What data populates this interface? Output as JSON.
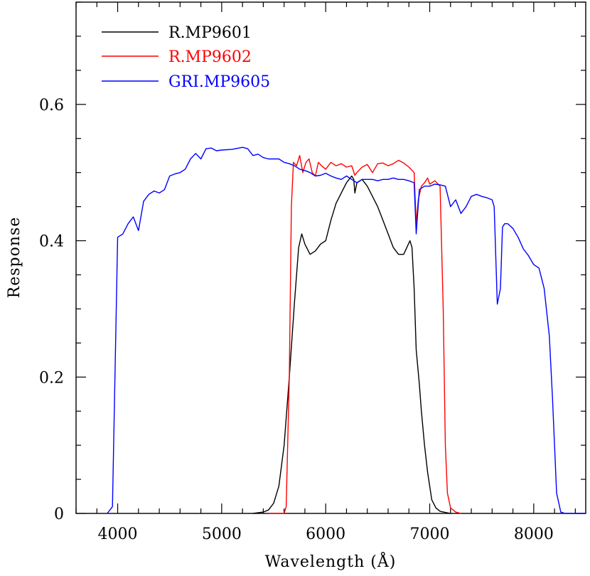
{
  "chart_data": {
    "type": "line",
    "title": "",
    "xlabel": "Wavelength (Å)",
    "ylabel": "Response",
    "xlim": [
      3600,
      8500
    ],
    "ylim": [
      0,
      0.75
    ],
    "x_ticks": [
      4000,
      5000,
      6000,
      7000,
      8000
    ],
    "x_tick_labels": [
      "4000",
      "5000",
      "6000",
      "7000",
      "8000"
    ],
    "y_ticks": [
      0,
      0.2,
      0.4,
      0.6
    ],
    "y_tick_labels": [
      "0",
      "0.2",
      "0.4",
      "0.6"
    ],
    "grid": false,
    "legend_position": "top-left",
    "series": [
      {
        "name": "R.MP9601",
        "color": "#000000",
        "points": [
          [
            5300,
            0
          ],
          [
            5400,
            0.002
          ],
          [
            5450,
            0.005
          ],
          [
            5500,
            0.015
          ],
          [
            5550,
            0.04
          ],
          [
            5600,
            0.1
          ],
          [
            5650,
            0.2
          ],
          [
            5700,
            0.31
          ],
          [
            5740,
            0.39
          ],
          [
            5770,
            0.41
          ],
          [
            5800,
            0.395
          ],
          [
            5850,
            0.38
          ],
          [
            5900,
            0.385
          ],
          [
            5950,
            0.395
          ],
          [
            6000,
            0.4
          ],
          [
            6050,
            0.43
          ],
          [
            6100,
            0.455
          ],
          [
            6150,
            0.47
          ],
          [
            6200,
            0.485
          ],
          [
            6250,
            0.495
          ],
          [
            6270,
            0.49
          ],
          [
            6280,
            0.47
          ],
          [
            6300,
            0.485
          ],
          [
            6350,
            0.49
          ],
          [
            6400,
            0.48
          ],
          [
            6450,
            0.465
          ],
          [
            6500,
            0.45
          ],
          [
            6550,
            0.43
          ],
          [
            6600,
            0.41
          ],
          [
            6650,
            0.39
          ],
          [
            6700,
            0.38
          ],
          [
            6750,
            0.38
          ],
          [
            6780,
            0.39
          ],
          [
            6810,
            0.4
          ],
          [
            6830,
            0.39
          ],
          [
            6850,
            0.33
          ],
          [
            6870,
            0.24
          ],
          [
            6900,
            0.19
          ],
          [
            6920,
            0.15
          ],
          [
            6950,
            0.1
          ],
          [
            6980,
            0.06
          ],
          [
            7020,
            0.02
          ],
          [
            7060,
            0.008
          ],
          [
            7100,
            0.003
          ],
          [
            7200,
            0
          ]
        ]
      },
      {
        "name": "R.MP9602",
        "color": "#ff0000",
        "points": [
          [
            5450,
            0
          ],
          [
            5600,
            0
          ],
          [
            5620,
            0.01
          ],
          [
            5650,
            0.2
          ],
          [
            5670,
            0.45
          ],
          [
            5690,
            0.515
          ],
          [
            5720,
            0.51
          ],
          [
            5750,
            0.525
          ],
          [
            5780,
            0.5
          ],
          [
            5810,
            0.515
          ],
          [
            5840,
            0.52
          ],
          [
            5870,
            0.5
          ],
          [
            5900,
            0.495
          ],
          [
            5930,
            0.515
          ],
          [
            5960,
            0.51
          ],
          [
            6000,
            0.505
          ],
          [
            6050,
            0.515
          ],
          [
            6100,
            0.51
          ],
          [
            6150,
            0.513
          ],
          [
            6200,
            0.508
          ],
          [
            6250,
            0.51
          ],
          [
            6280,
            0.496
          ],
          [
            6300,
            0.5
          ],
          [
            6350,
            0.508
          ],
          [
            6400,
            0.512
          ],
          [
            6450,
            0.5
          ],
          [
            6500,
            0.513
          ],
          [
            6550,
            0.514
          ],
          [
            6600,
            0.51
          ],
          [
            6650,
            0.513
          ],
          [
            6700,
            0.518
          ],
          [
            6750,
            0.514
          ],
          [
            6800,
            0.508
          ],
          [
            6850,
            0.5
          ],
          [
            6870,
            0.425
          ],
          [
            6890,
            0.46
          ],
          [
            6920,
            0.48
          ],
          [
            6950,
            0.485
          ],
          [
            6980,
            0.492
          ],
          [
            7000,
            0.483
          ],
          [
            7050,
            0.488
          ],
          [
            7100,
            0.48
          ],
          [
            7130,
            0.3
          ],
          [
            7150,
            0.1
          ],
          [
            7170,
            0.03
          ],
          [
            7200,
            0.008
          ],
          [
            7250,
            0.002
          ],
          [
            7300,
            0
          ]
        ]
      },
      {
        "name": "GRI.MP9605",
        "color": "#0000ff",
        "points": [
          [
            3900,
            0
          ],
          [
            3950,
            0.01
          ],
          [
            4000,
            0.405
          ],
          [
            4050,
            0.41
          ],
          [
            4100,
            0.425
          ],
          [
            4150,
            0.435
          ],
          [
            4200,
            0.415
          ],
          [
            4250,
            0.458
          ],
          [
            4300,
            0.468
          ],
          [
            4350,
            0.473
          ],
          [
            4400,
            0.47
          ],
          [
            4450,
            0.475
          ],
          [
            4500,
            0.495
          ],
          [
            4550,
            0.498
          ],
          [
            4600,
            0.5
          ],
          [
            4650,
            0.505
          ],
          [
            4700,
            0.52
          ],
          [
            4750,
            0.528
          ],
          [
            4800,
            0.52
          ],
          [
            4850,
            0.535
          ],
          [
            4900,
            0.536
          ],
          [
            4950,
            0.532
          ],
          [
            5000,
            0.533
          ],
          [
            5100,
            0.534
          ],
          [
            5200,
            0.537
          ],
          [
            5250,
            0.535
          ],
          [
            5300,
            0.525
          ],
          [
            5350,
            0.527
          ],
          [
            5400,
            0.522
          ],
          [
            5450,
            0.52
          ],
          [
            5500,
            0.52
          ],
          [
            5550,
            0.52
          ],
          [
            5600,
            0.515
          ],
          [
            5650,
            0.513
          ],
          [
            5700,
            0.51
          ],
          [
            5750,
            0.505
          ],
          [
            5800,
            0.503
          ],
          [
            5850,
            0.5
          ],
          [
            5900,
            0.495
          ],
          [
            5950,
            0.496
          ],
          [
            6000,
            0.499
          ],
          [
            6050,
            0.495
          ],
          [
            6100,
            0.492
          ],
          [
            6150,
            0.49
          ],
          [
            6200,
            0.495
          ],
          [
            6250,
            0.49
          ],
          [
            6300,
            0.485
          ],
          [
            6350,
            0.49
          ],
          [
            6400,
            0.49
          ],
          [
            6450,
            0.49
          ],
          [
            6500,
            0.488
          ],
          [
            6550,
            0.49
          ],
          [
            6600,
            0.49
          ],
          [
            6650,
            0.492
          ],
          [
            6700,
            0.49
          ],
          [
            6750,
            0.49
          ],
          [
            6800,
            0.488
          ],
          [
            6850,
            0.485
          ],
          [
            6870,
            0.41
          ],
          [
            6900,
            0.475
          ],
          [
            6950,
            0.48
          ],
          [
            7000,
            0.48
          ],
          [
            7050,
            0.483
          ],
          [
            7100,
            0.482
          ],
          [
            7150,
            0.48
          ],
          [
            7200,
            0.45
          ],
          [
            7250,
            0.46
          ],
          [
            7300,
            0.44
          ],
          [
            7350,
            0.45
          ],
          [
            7400,
            0.465
          ],
          [
            7450,
            0.468
          ],
          [
            7500,
            0.465
          ],
          [
            7550,
            0.463
          ],
          [
            7600,
            0.46
          ],
          [
            7620,
            0.45
          ],
          [
            7650,
            0.307
          ],
          [
            7680,
            0.33
          ],
          [
            7700,
            0.42
          ],
          [
            7720,
            0.425
          ],
          [
            7750,
            0.425
          ],
          [
            7800,
            0.418
          ],
          [
            7850,
            0.405
          ],
          [
            7900,
            0.388
          ],
          [
            7950,
            0.378
          ],
          [
            8000,
            0.365
          ],
          [
            8050,
            0.36
          ],
          [
            8100,
            0.33
          ],
          [
            8150,
            0.26
          ],
          [
            8180,
            0.17
          ],
          [
            8200,
            0.1
          ],
          [
            8220,
            0.03
          ],
          [
            8260,
            0.002
          ],
          [
            8300,
            0
          ],
          [
            8500,
            0
          ]
        ]
      }
    ]
  }
}
